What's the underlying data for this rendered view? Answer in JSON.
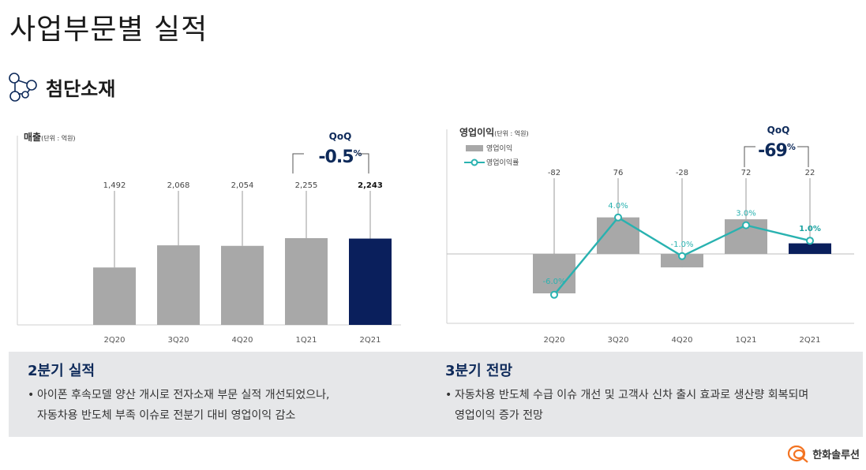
{
  "page": {
    "title": "사업부문별 실적"
  },
  "section": {
    "title": "첨단소재",
    "icon": "molecule-icon"
  },
  "colors": {
    "bar_gray": "#a8a8a8",
    "bar_highlight": "#0a1f5c",
    "line_teal": "#29b2b0",
    "navy_text": "#0e2a5a",
    "summary_bg": "#e6e7e9"
  },
  "chart_data": [
    {
      "type": "bar",
      "title": "매출",
      "unit": "(단위 : 억원)",
      "categories": [
        "2Q20",
        "3Q20",
        "4Q20",
        "1Q21",
        "2Q21"
      ],
      "series": [
        {
          "values": [
            1492,
            2068,
            2054,
            2255,
            2243
          ]
        }
      ],
      "value_labels": [
        "1,492",
        "2,068",
        "2,054",
        "2,255",
        "2,243"
      ],
      "highlight_index": 4,
      "ylim": [
        0,
        2500
      ],
      "qoq": {
        "label": "QoQ",
        "value": "-0.5",
        "suffix": "%"
      }
    },
    {
      "type": "bar+line",
      "title": "영업이익",
      "unit": "(단위 : 억원)",
      "categories": [
        "2Q20",
        "3Q20",
        "4Q20",
        "1Q21",
        "2Q21"
      ],
      "series": [
        {
          "name": "영업이익",
          "type": "bar",
          "values": [
            -82,
            76,
            -28,
            72,
            22
          ]
        },
        {
          "name": "영업이익률",
          "type": "line",
          "values": [
            -6.0,
            4.0,
            -1.0,
            3.0,
            1.0
          ]
        }
      ],
      "value_labels": [
        "-82",
        "76",
        "-28",
        "72",
        "22"
      ],
      "rate_labels": [
        "-6.0%",
        "4.0%",
        "-1.0%",
        "3.0%",
        "1.0%"
      ],
      "highlight_index": 4,
      "ylim": [
        -82,
        82
      ],
      "rate_ylim": [
        -6.0,
        4.0
      ],
      "qoq": {
        "label": "QoQ",
        "value": "-69",
        "suffix": "%"
      }
    }
  ],
  "summary": {
    "left": {
      "heading": "2분기 실적",
      "bullet": "•",
      "lines": [
        "아이폰 후속모델 양산 개시로 전자소재 부문 실적 개선되었으나,",
        "자동차용 반도체 부족 이슈로 전분기 대비 영업이익 감소"
      ]
    },
    "right": {
      "heading": "3분기 전망",
      "bullet": "•",
      "lines": [
        "자동차용 반도체 수급 이슈 개선 및 고객사 신차 출시 효과로 생산량 회복되며",
        "영업이익 증가 전망"
      ]
    }
  },
  "footer": {
    "logo_text": "한화솔루션",
    "logo_icon": "hanwha-logo-icon"
  }
}
